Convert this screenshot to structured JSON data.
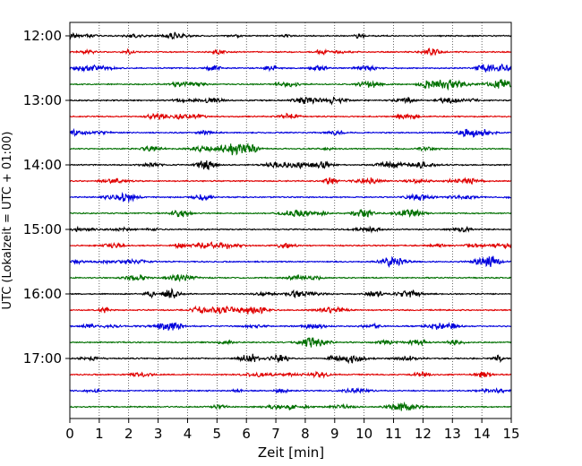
{
  "chart_data": {
    "type": "line",
    "title": "",
    "xlabel": "Zeit  [min]",
    "ylabel": "UTC (Lokalzeit = UTC + 01:00)",
    "xlim": [
      0,
      15
    ],
    "x_ticks": [
      "0",
      "1",
      "2",
      "3",
      "4",
      "5",
      "6",
      "7",
      "8",
      "9",
      "10",
      "11",
      "12",
      "13",
      "14",
      "15"
    ],
    "y_tick_labels": [
      "12:00",
      "13:00",
      "14:00",
      "15:00",
      "16:00",
      "17:00"
    ],
    "traces_per_hour": 4,
    "trace_start_times": [
      "12:00",
      "12:15",
      "12:30",
      "12:45",
      "13:00",
      "13:15",
      "13:30",
      "13:45",
      "14:00",
      "14:15",
      "14:30",
      "14:45",
      "15:00",
      "15:15",
      "15:30",
      "15:45",
      "16:00",
      "16:15",
      "16:30",
      "16:45",
      "17:00",
      "17:15",
      "17:30",
      "17:45"
    ],
    "trace_colors": [
      "#000000",
      "#e00000",
      "#0000dd",
      "#007000"
    ],
    "grid": "vertical dotted lines at each minute",
    "legend": "none"
  }
}
